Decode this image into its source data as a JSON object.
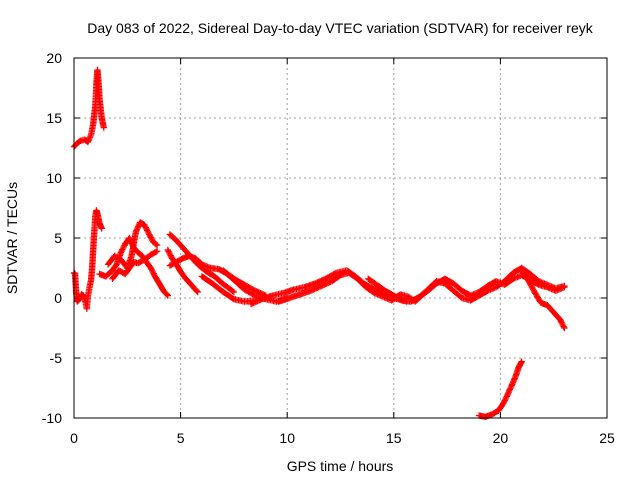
{
  "chart_data": {
    "type": "scatter",
    "title": "Day 083 of 2022, Sidereal Day-to-day VTEC variation (SDTVAR) for receiver reyk",
    "xlabel": "GPS time / hours",
    "ylabel": "SDTVAR / TECUs",
    "xlim": [
      0,
      25
    ],
    "ylim": [
      -10,
      20
    ],
    "xticks": [
      0,
      5,
      10,
      15,
      20,
      25
    ],
    "yticks": [
      -10,
      -5,
      0,
      5,
      10,
      15,
      20
    ],
    "grid": true,
    "marker": "+",
    "color": "#ff0000",
    "series": [
      {
        "name": "reyk",
        "segments": [
          [
            [
              0.0,
              12.6
            ],
            [
              0.15,
              12.9
            ],
            [
              0.3,
              13.1
            ],
            [
              0.5,
              13.2
            ],
            [
              0.65,
              13.0
            ],
            [
              0.8,
              13.6
            ],
            [
              0.9,
              14.5
            ],
            [
              1.0,
              16.0
            ],
            [
              1.05,
              17.8
            ],
            [
              1.1,
              19.0
            ],
            [
              1.15,
              18.0
            ],
            [
              1.2,
              16.5
            ],
            [
              1.3,
              15.0
            ],
            [
              1.4,
              14.2
            ]
          ],
          [
            [
              0.0,
              2.1
            ],
            [
              0.05,
              2.0
            ],
            [
              0.1,
              0.5
            ],
            [
              0.15,
              -0.3
            ],
            [
              0.25,
              -0.1
            ],
            [
              0.35,
              0.3
            ],
            [
              0.45,
              0.2
            ],
            [
              0.55,
              -0.4
            ],
            [
              0.6,
              -0.9
            ],
            [
              0.65,
              0.1
            ],
            [
              0.7,
              0.6
            ],
            [
              0.8,
              1.5
            ],
            [
              0.85,
              2.5
            ],
            [
              0.9,
              4.0
            ],
            [
              0.95,
              5.5
            ],
            [
              1.0,
              6.8
            ],
            [
              1.05,
              7.3
            ],
            [
              1.1,
              7.0
            ],
            [
              1.2,
              6.2
            ],
            [
              1.3,
              5.8
            ]
          ],
          [
            [
              1.2,
              2.0
            ],
            [
              1.5,
              1.8
            ],
            [
              1.8,
              2.3
            ],
            [
              2.0,
              2.8
            ],
            [
              2.2,
              3.8
            ],
            [
              2.4,
              4.5
            ],
            [
              2.6,
              5.0
            ],
            [
              2.8,
              4.2
            ],
            [
              3.0,
              3.8
            ],
            [
              3.2,
              3.5
            ],
            [
              3.4,
              3.0
            ],
            [
              3.6,
              2.5
            ],
            [
              3.8,
              1.8
            ],
            [
              4.0,
              1.2
            ],
            [
              4.2,
              0.6
            ],
            [
              4.4,
              0.2
            ]
          ],
          [
            [
              1.6,
              2.8
            ],
            [
              1.9,
              3.5
            ],
            [
              2.2,
              3.2
            ],
            [
              2.5,
              2.5
            ],
            [
              2.7,
              3.5
            ],
            [
              2.9,
              5.5
            ],
            [
              3.1,
              6.3
            ],
            [
              3.3,
              6.1
            ],
            [
              3.5,
              5.4
            ],
            [
              3.7,
              4.7
            ],
            [
              3.9,
              4.4
            ]
          ],
          [
            [
              1.8,
              1.6
            ],
            [
              2.1,
              2.3
            ],
            [
              2.4,
              2.0
            ],
            [
              2.6,
              2.5
            ],
            [
              2.8,
              3.0
            ],
            [
              3.0,
              2.9
            ],
            [
              3.3,
              3.2
            ],
            [
              3.6,
              3.6
            ],
            [
              3.9,
              3.9
            ]
          ],
          [
            [
              4.4,
              4.0
            ],
            [
              4.6,
              3.3
            ],
            [
              4.8,
              2.8
            ],
            [
              5.0,
              2.2
            ],
            [
              5.2,
              1.7
            ],
            [
              5.4,
              1.3
            ],
            [
              5.6,
              0.9
            ],
            [
              5.8,
              0.5
            ]
          ],
          [
            [
              4.5,
              5.3
            ],
            [
              4.8,
              4.8
            ],
            [
              5.1,
              4.2
            ],
            [
              5.4,
              3.6
            ],
            [
              5.7,
              3.0
            ],
            [
              6.0,
              2.5
            ],
            [
              6.3,
              2.1
            ],
            [
              6.6,
              1.8
            ],
            [
              6.9,
              1.3
            ],
            [
              7.2,
              0.9
            ],
            [
              7.5,
              0.5
            ]
          ],
          [
            [
              4.5,
              2.7
            ],
            [
              4.8,
              3.0
            ],
            [
              5.1,
              3.3
            ],
            [
              5.4,
              3.5
            ],
            [
              5.7,
              3.3
            ],
            [
              6.0,
              2.8
            ],
            [
              6.4,
              2.5
            ],
            [
              6.8,
              2.4
            ],
            [
              7.2,
              2.0
            ],
            [
              7.6,
              1.5
            ],
            [
              8.0,
              1.1
            ],
            [
              8.5,
              0.6
            ],
            [
              9.0,
              0.2
            ]
          ],
          [
            [
              6.0,
              1.8
            ],
            [
              6.5,
              1.2
            ],
            [
              7.0,
              0.5
            ],
            [
              7.5,
              -0.1
            ],
            [
              8.0,
              -0.3
            ],
            [
              8.5,
              -0.2
            ]
          ],
          [
            [
              7.0,
              2.3
            ],
            [
              7.5,
              1.5
            ],
            [
              8.0,
              0.7
            ],
            [
              8.5,
              0.2
            ],
            [
              9.0,
              -0.1
            ],
            [
              9.5,
              -0.3
            ],
            [
              10.0,
              0.0
            ]
          ],
          [
            [
              8.3,
              -0.5
            ],
            [
              8.8,
              -0.1
            ],
            [
              9.3,
              0.2
            ],
            [
              9.8,
              0.4
            ],
            [
              10.3,
              0.7
            ],
            [
              10.8,
              0.9
            ],
            [
              11.3,
              1.2
            ],
            [
              11.8,
              1.6
            ],
            [
              12.3,
              2.1
            ],
            [
              12.8,
              2.3
            ],
            [
              13.2,
              1.8
            ],
            [
              13.6,
              1.2
            ],
            [
              14.0,
              0.8
            ],
            [
              14.4,
              0.4
            ],
            [
              14.8,
              0.1
            ],
            [
              15.2,
              -0.1
            ],
            [
              15.6,
              -0.3
            ]
          ],
          [
            [
              9.6,
              -0.3
            ],
            [
              10.1,
              0.0
            ],
            [
              10.6,
              0.3
            ],
            [
              11.1,
              0.6
            ],
            [
              11.6,
              1.0
            ],
            [
              12.1,
              1.4
            ],
            [
              12.5,
              1.9
            ],
            [
              12.9,
              2.1
            ],
            [
              13.3,
              1.6
            ],
            [
              13.7,
              0.9
            ],
            [
              14.1,
              0.4
            ],
            [
              14.5,
              0.1
            ],
            [
              14.9,
              -0.2
            ],
            [
              15.3,
              0.3
            ],
            [
              15.7,
              0.1
            ],
            [
              16.0,
              -0.3
            ],
            [
              16.3,
              0.2
            ],
            [
              16.6,
              0.6
            ],
            [
              17.0,
              1.2
            ],
            [
              17.4,
              1.6
            ],
            [
              17.8,
              1.2
            ],
            [
              18.2,
              0.6
            ],
            [
              18.6,
              0.2
            ],
            [
              19.0,
              0.5
            ],
            [
              19.4,
              1.0
            ],
            [
              19.8,
              1.4
            ],
            [
              20.2,
              1.1
            ],
            [
              20.6,
              1.6
            ],
            [
              21.0,
              1.9
            ],
            [
              21.4,
              1.5
            ],
            [
              21.8,
              1.1
            ],
            [
              22.2,
              0.9
            ],
            [
              22.6,
              0.6
            ],
            [
              23.0,
              0.9
            ]
          ],
          [
            [
              13.8,
              1.6
            ],
            [
              14.2,
              1.1
            ],
            [
              14.6,
              0.6
            ],
            [
              15.0,
              0.2
            ],
            [
              15.4,
              -0.2
            ],
            [
              15.8,
              -0.3
            ],
            [
              16.2,
              0.1
            ],
            [
              16.6,
              0.7
            ],
            [
              17.0,
              1.4
            ],
            [
              17.4,
              1.2
            ],
            [
              17.8,
              0.6
            ],
            [
              18.2,
              0.0
            ],
            [
              18.6,
              -0.2
            ],
            [
              19.0,
              0.2
            ],
            [
              19.4,
              0.6
            ],
            [
              19.8,
              0.9
            ],
            [
              20.2,
              1.4
            ],
            [
              20.6,
              2.1
            ],
            [
              21.0,
              2.5
            ],
            [
              21.4,
              2.0
            ],
            [
              21.8,
              1.4
            ],
            [
              22.2,
              1.1
            ],
            [
              22.6,
              0.8
            ],
            [
              23.0,
              1.0
            ]
          ],
          [
            [
              21.0,
              2.3
            ],
            [
              21.3,
              1.5
            ],
            [
              21.6,
              0.5
            ],
            [
              21.9,
              -0.4
            ],
            [
              22.2,
              -0.6
            ],
            [
              22.5,
              -1.2
            ],
            [
              22.8,
              -1.8
            ],
            [
              23.0,
              -2.5
            ]
          ],
          [
            [
              19.0,
              -9.8
            ],
            [
              19.3,
              -9.9
            ],
            [
              19.6,
              -9.7
            ],
            [
              19.9,
              -9.4
            ],
            [
              20.1,
              -8.9
            ],
            [
              20.3,
              -8.2
            ],
            [
              20.5,
              -7.4
            ],
            [
              20.7,
              -6.6
            ],
            [
              20.85,
              -5.8
            ],
            [
              21.0,
              -5.3
            ]
          ]
        ]
      }
    ]
  }
}
